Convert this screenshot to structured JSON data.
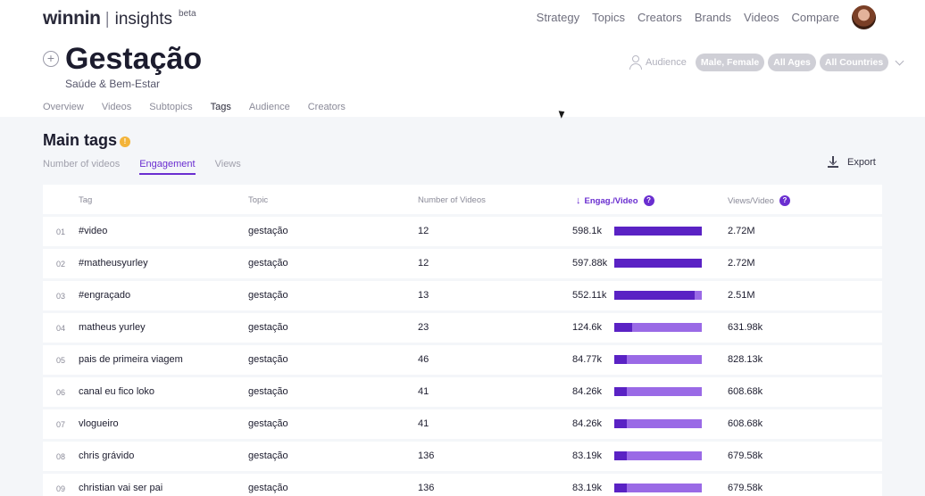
{
  "header": {
    "logo_word": "winnin",
    "logo_separator": "|",
    "logo_sub": "insights",
    "logo_badge": "beta",
    "nav": [
      "Strategy",
      "Topics",
      "Creators",
      "Brands",
      "Videos",
      "Compare"
    ]
  },
  "topic": {
    "title": "Gestação",
    "category": "Saúde & Bem-Estar"
  },
  "audience": {
    "label": "Audience",
    "filters": [
      "Male, Female",
      "All Ages",
      "All Countries"
    ]
  },
  "tabs": {
    "items": [
      "Overview",
      "Videos",
      "Subtopics",
      "Tags",
      "Audience",
      "Creators"
    ],
    "active": "Tags"
  },
  "section": {
    "title": "Main tags",
    "info": "!",
    "subtabs": [
      "Number of videos",
      "Engagement",
      "Views"
    ],
    "active_subtab": "Engagement",
    "export_label": "Export"
  },
  "table": {
    "columns": {
      "tag": "Tag",
      "topic": "Topic",
      "videos": "Number of Videos",
      "engagement": "Engag./Video",
      "views": "Views/Video"
    },
    "sort_arrow": "↓",
    "help": "?",
    "rows": [
      {
        "rank": "01",
        "tag": "#video",
        "topic": "gestação",
        "videos": "12",
        "engagement": "598.1k",
        "engagement_value": 598.1,
        "views": "2.72M"
      },
      {
        "rank": "02",
        "tag": "#matheusyurley",
        "topic": "gestação",
        "videos": "12",
        "engagement": "597.88k",
        "engagement_value": 597.88,
        "views": "2.72M"
      },
      {
        "rank": "03",
        "tag": "#engraçado",
        "topic": "gestação",
        "videos": "13",
        "engagement": "552.11k",
        "engagement_value": 552.11,
        "views": "2.51M"
      },
      {
        "rank": "04",
        "tag": "matheus yurley",
        "topic": "gestação",
        "videos": "23",
        "engagement": "124.6k",
        "engagement_value": 124.6,
        "views": "631.98k"
      },
      {
        "rank": "05",
        "tag": "pais de primeira viagem",
        "topic": "gestação",
        "videos": "46",
        "engagement": "84.77k",
        "engagement_value": 84.77,
        "views": "828.13k"
      },
      {
        "rank": "06",
        "tag": "canal eu fico loko",
        "topic": "gestação",
        "videos": "41",
        "engagement": "84.26k",
        "engagement_value": 84.26,
        "views": "608.68k"
      },
      {
        "rank": "07",
        "tag": "vlogueiro",
        "topic": "gestação",
        "videos": "41",
        "engagement": "84.26k",
        "engagement_value": 84.26,
        "views": "608.68k"
      },
      {
        "rank": "08",
        "tag": "chris grávido",
        "topic": "gestação",
        "videos": "136",
        "engagement": "83.19k",
        "engagement_value": 83.19,
        "views": "679.58k"
      },
      {
        "rank": "09",
        "tag": "christian vai ser pai",
        "topic": "gestação",
        "videos": "136",
        "engagement": "83.19k",
        "engagement_value": 83.19,
        "views": "679.58k"
      }
    ]
  }
}
